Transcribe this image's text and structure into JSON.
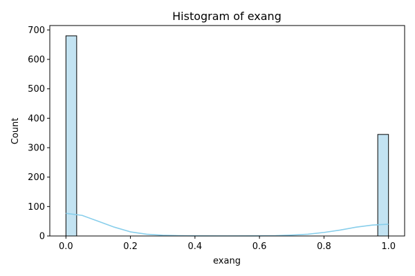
{
  "chart_data": {
    "type": "bar",
    "title": "Histogram of exang",
    "xlabel": "exang",
    "ylabel": "Count",
    "xlim": [
      -0.05,
      1.05
    ],
    "ylim": [
      0,
      715
    ],
    "x_ticks": [
      "0.0",
      "0.2",
      "0.4",
      "0.6",
      "0.8",
      "1.0"
    ],
    "x_tick_values": [
      0.0,
      0.2,
      0.4,
      0.6,
      0.8,
      1.0
    ],
    "y_ticks": [
      "0",
      "100",
      "200",
      "300",
      "400",
      "500",
      "600",
      "700"
    ],
    "y_tick_values": [
      0,
      100,
      200,
      300,
      400,
      500,
      600,
      700
    ],
    "bars": [
      {
        "x0": 0.0,
        "x1": 0.0333,
        "count": 680
      },
      {
        "x0": 0.9667,
        "x1": 1.0,
        "count": 345
      }
    ],
    "kde_curve": {
      "x": [
        0.0,
        0.05,
        0.1,
        0.15,
        0.2,
        0.25,
        0.3,
        0.35,
        0.4,
        0.5,
        0.6,
        0.65,
        0.7,
        0.75,
        0.8,
        0.85,
        0.9,
        0.95,
        1.0
      ],
      "y": [
        77,
        70,
        50,
        30,
        14,
        6,
        2.5,
        1,
        0.5,
        0.3,
        0.5,
        1,
        3,
        6,
        12,
        20,
        30,
        37,
        40
      ]
    },
    "grid": false,
    "colors": {
      "bar_fill": "#c3e3f2",
      "bar_edge": "#000000",
      "kde_line": "#87ceeb"
    }
  }
}
